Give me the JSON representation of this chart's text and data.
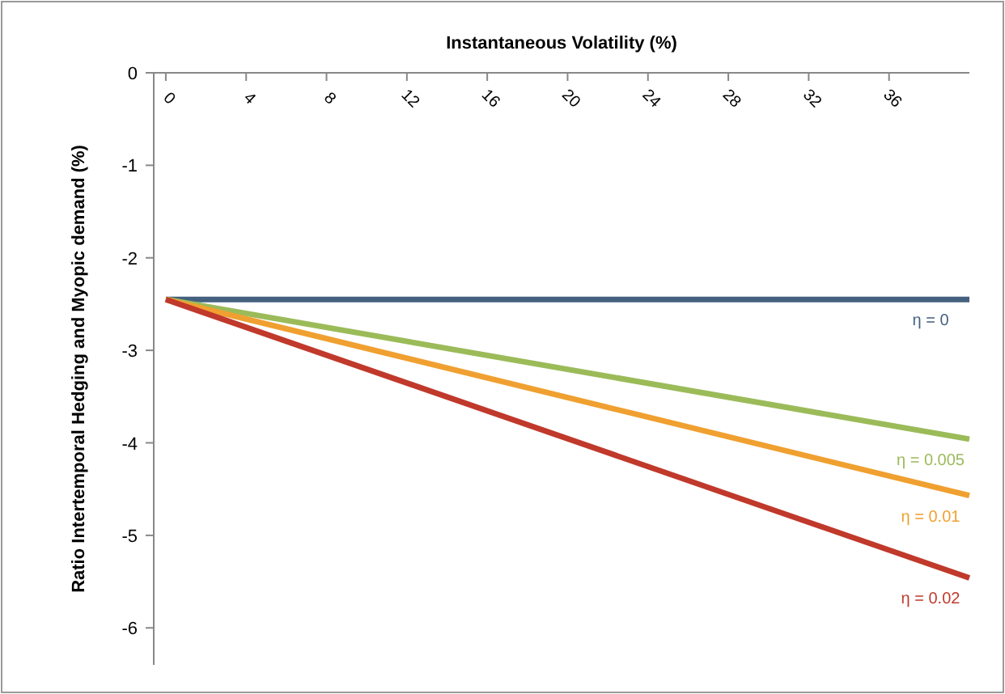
{
  "chart_data": {
    "type": "line",
    "xlabel": "Instantaneous Volatility (%)",
    "ylabel": "Ratio Intertemporal Hedging and Myopic demand (%)",
    "x": [
      0,
      40
    ],
    "xlim": [
      -0.6,
      40
    ],
    "xticks": [
      0,
      4,
      8,
      12,
      16,
      20,
      24,
      28,
      32,
      36
    ],
    "ylim": [
      -6.4,
      0
    ],
    "yticks": [
      0,
      -1,
      -2,
      -3,
      -4,
      -5,
      -6
    ],
    "grid": false,
    "marker": "none",
    "line_style": "solid",
    "series": [
      {
        "name": "η = 0",
        "color": "#44617f",
        "values": [
          -2.45,
          -2.45
        ]
      },
      {
        "name": "η = 0.005",
        "color": "#9bbb59",
        "values": [
          -2.45,
          -3.96
        ]
      },
      {
        "name": "η = 0.01",
        "color": "#f0a030",
        "values": [
          -2.45,
          -4.57
        ]
      },
      {
        "name": "η = 0.02",
        "color": "#c0392b",
        "values": [
          -2.45,
          -5.46
        ]
      }
    ]
  }
}
